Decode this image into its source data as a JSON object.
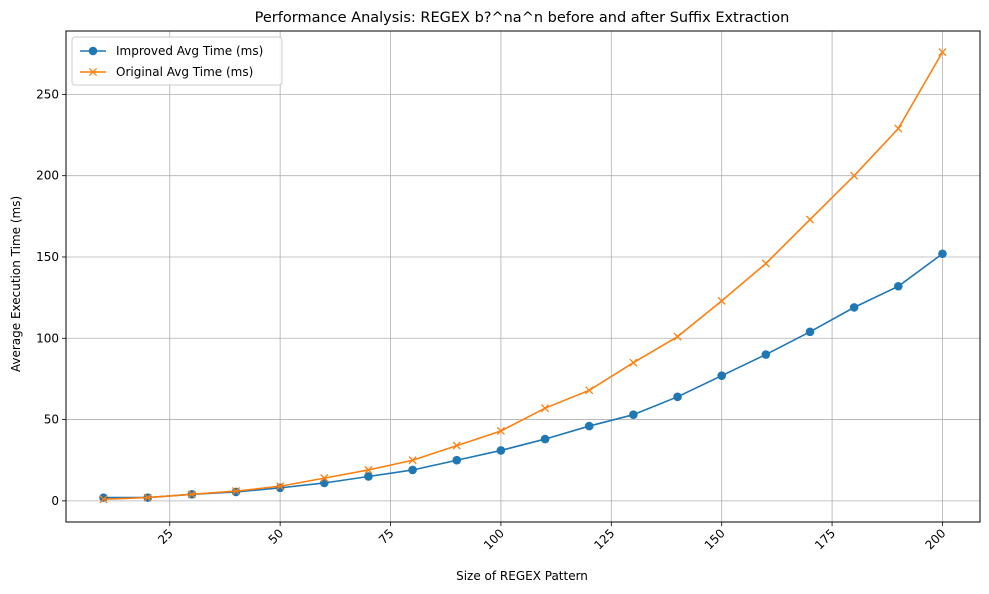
{
  "chart_data": {
    "type": "line",
    "title": "Performance Analysis: REGEX b?^na^n before and after Suffix Extraction",
    "xlabel": "Size of REGEX Pattern",
    "ylabel": "Average Execution Time (ms)",
    "xlim": [
      1.5,
      208.5
    ],
    "ylim": [
      -13,
      289
    ],
    "x_ticks": [
      25,
      50,
      75,
      100,
      125,
      150,
      175,
      200
    ],
    "y_ticks": [
      0,
      50,
      100,
      150,
      200,
      250
    ],
    "grid": true,
    "legend_position": "top-left",
    "x": [
      10,
      20,
      30,
      40,
      50,
      60,
      70,
      80,
      90,
      100,
      110,
      120,
      130,
      140,
      150,
      160,
      170,
      180,
      190,
      200
    ],
    "series": [
      {
        "name": "Improved Avg Time (ms)",
        "color": "#1f77b4",
        "marker": "circle",
        "values": [
          2,
          2,
          4,
          5.5,
          8,
          11,
          15,
          19,
          25,
          31,
          38,
          46,
          53,
          64,
          77,
          90,
          104,
          119,
          132,
          152
        ]
      },
      {
        "name": "Original Avg Time (ms)",
        "color": "#ff7f0e",
        "marker": "x",
        "values": [
          1,
          2,
          4,
          6,
          9,
          14,
          19,
          25,
          34,
          43,
          57,
          68,
          85,
          101,
          123,
          146,
          173,
          200,
          229,
          276
        ]
      }
    ]
  }
}
